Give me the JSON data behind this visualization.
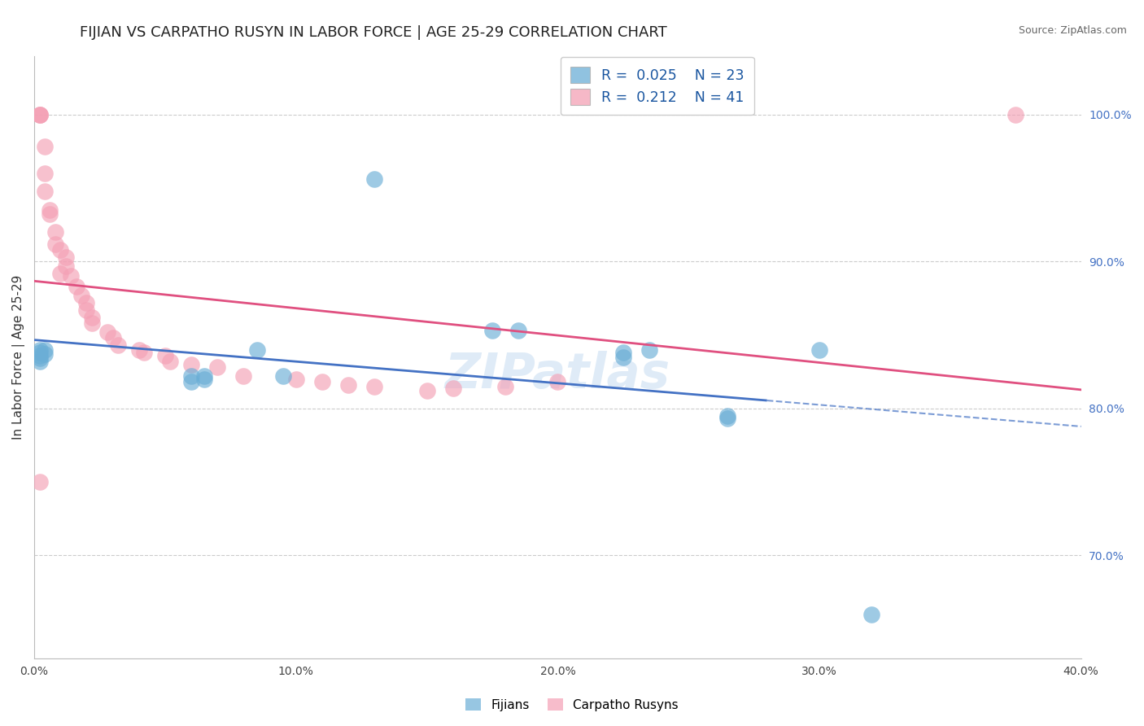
{
  "title": "FIJIAN VS CARPATHO RUSYN IN LABOR FORCE | AGE 25-29 CORRELATION CHART",
  "source": "Source: ZipAtlas.com",
  "ylabel_left": "In Labor Force | Age 25-29",
  "xlim": [
    0.0,
    0.4
  ],
  "ylim": [
    0.63,
    1.04
  ],
  "yticks_right": [
    0.7,
    0.8,
    0.9,
    1.0
  ],
  "ytick_right_labels": [
    "70.0%",
    "80.0%",
    "90.0%",
    "100.0%"
  ],
  "xticks": [
    0.0,
    0.1,
    0.2,
    0.3,
    0.4
  ],
  "xtick_labels": [
    "0.0%",
    "10.0%",
    "20.0%",
    "30.0%",
    "40.0%"
  ],
  "blue_color": "#6baed6",
  "pink_color": "#f4a0b5",
  "trend_blue_solid": "#4472c4",
  "trend_blue_dash": "#4472c4",
  "trend_pink": "#e05080",
  "legend_R_blue": "0.025",
  "legend_N_blue": "23",
  "legend_R_pink": "0.212",
  "legend_N_pink": "41",
  "label_blue": "Fijians",
  "label_pink": "Carpatho Rusyns",
  "title_fontsize": 13,
  "axis_label_fontsize": 11,
  "tick_fontsize": 10,
  "watermark": "ZIPatlas",
  "fijian_x": [
    0.002,
    0.002,
    0.002,
    0.002,
    0.002,
    0.004,
    0.004,
    0.06,
    0.06,
    0.065,
    0.065,
    0.085,
    0.095,
    0.13,
    0.175,
    0.185,
    0.225,
    0.225,
    0.235,
    0.265,
    0.265,
    0.3,
    0.32
  ],
  "fijian_y": [
    0.84,
    0.838,
    0.836,
    0.834,
    0.832,
    0.84,
    0.837,
    0.822,
    0.818,
    0.822,
    0.82,
    0.84,
    0.822,
    0.956,
    0.853,
    0.853,
    0.838,
    0.835,
    0.84,
    0.795,
    0.793,
    0.84,
    0.66
  ],
  "rusyn_x": [
    0.002,
    0.002,
    0.002,
    0.004,
    0.004,
    0.004,
    0.006,
    0.006,
    0.008,
    0.008,
    0.01,
    0.01,
    0.012,
    0.012,
    0.014,
    0.016,
    0.018,
    0.02,
    0.02,
    0.022,
    0.022,
    0.028,
    0.03,
    0.032,
    0.04,
    0.042,
    0.05,
    0.052,
    0.06,
    0.07,
    0.08,
    0.1,
    0.11,
    0.12,
    0.13,
    0.15,
    0.16,
    0.18,
    0.2,
    0.375,
    0.002
  ],
  "rusyn_y": [
    1.0,
    1.0,
    1.0,
    0.978,
    0.96,
    0.948,
    0.935,
    0.932,
    0.92,
    0.912,
    0.908,
    0.892,
    0.903,
    0.897,
    0.89,
    0.883,
    0.877,
    0.872,
    0.867,
    0.862,
    0.858,
    0.852,
    0.848,
    0.843,
    0.84,
    0.838,
    0.836,
    0.832,
    0.83,
    0.828,
    0.822,
    0.82,
    0.818,
    0.816,
    0.815,
    0.812,
    0.814,
    0.815,
    0.818,
    1.0,
    0.75
  ]
}
